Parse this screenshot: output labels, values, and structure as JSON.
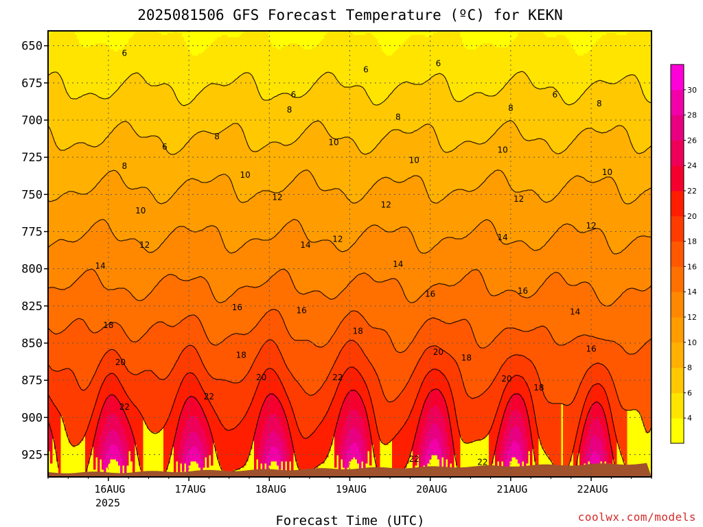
{
  "chart_data": {
    "type": "heatmap",
    "title": "2025081506 GFS Forecast Temperature (ºC) for KEKN",
    "xlabel": "Forecast Time (UTC)",
    "ylabel": "",
    "credit": "coolwx.com/models",
    "y_axis": {
      "reversed": true,
      "ylim": [
        640,
        940
      ],
      "ticks": [
        650,
        675,
        700,
        725,
        750,
        775,
        800,
        825,
        850,
        875,
        900,
        925
      ],
      "tick_labels": [
        "650",
        "675",
        "700",
        "725",
        "750",
        "775",
        "800",
        "825",
        "850",
        "875",
        "900",
        "925"
      ]
    },
    "x_axis": {
      "xlim": [
        -0.75,
        6.75
      ],
      "ticks": [
        0,
        1,
        2,
        3,
        4,
        5,
        6
      ],
      "tick_labels": [
        "16AUG",
        "17AUG",
        "18AUG",
        "19AUG",
        "20AUG",
        "21AUG",
        "22AUG"
      ],
      "year_label": "2025"
    },
    "grid": true,
    "colorbar": {
      "levels": [
        2,
        4,
        6,
        8,
        10,
        12,
        14,
        16,
        18,
        20,
        22,
        24,
        26,
        28,
        30,
        32
      ],
      "tick_labels": [
        "4",
        "6",
        "8",
        "10",
        "12",
        "14",
        "16",
        "18",
        "20",
        "22",
        "24",
        "26",
        "28",
        "30"
      ],
      "colors": [
        "#ffff00",
        "#ffe400",
        "#ffc800",
        "#ffb000",
        "#ff9c00",
        "#ff8800",
        "#ff7000",
        "#ff5800",
        "#ff3c00",
        "#ff1e00",
        "#f5002e",
        "#ee0058",
        "#e80080",
        "#f200a8",
        "#ff00d8"
      ]
    },
    "contour_labels": [
      {
        "value": "6",
        "x": 0.2,
        "y": 655
      },
      {
        "value": "6",
        "x": 2.3,
        "y": 683
      },
      {
        "value": "6",
        "x": 3.2,
        "y": 666
      },
      {
        "value": "6",
        "x": 4.1,
        "y": 662
      },
      {
        "value": "6",
        "x": 5.55,
        "y": 683
      },
      {
        "value": "6",
        "x": 0.7,
        "y": 718
      },
      {
        "value": "8",
        "x": 0.2,
        "y": 731
      },
      {
        "value": "8",
        "x": 1.35,
        "y": 711
      },
      {
        "value": "8",
        "x": 2.25,
        "y": 693
      },
      {
        "value": "8",
        "x": 3.6,
        "y": 698
      },
      {
        "value": "8",
        "x": 5.0,
        "y": 692
      },
      {
        "value": "8",
        "x": 6.1,
        "y": 689
      },
      {
        "value": "10",
        "x": 0.4,
        "y": 761
      },
      {
        "value": "10",
        "x": 1.7,
        "y": 737
      },
      {
        "value": "10",
        "x": 2.8,
        "y": 715
      },
      {
        "value": "10",
        "x": 3.8,
        "y": 727
      },
      {
        "value": "10",
        "x": 4.9,
        "y": 720
      },
      {
        "value": "10",
        "x": 6.2,
        "y": 735
      },
      {
        "value": "12",
        "x": 0.45,
        "y": 784
      },
      {
        "value": "12",
        "x": 2.1,
        "y": 752
      },
      {
        "value": "12",
        "x": 3.45,
        "y": 757
      },
      {
        "value": "12",
        "x": 2.85,
        "y": 780
      },
      {
        "value": "12",
        "x": 5.1,
        "y": 753
      },
      {
        "value": "12",
        "x": 6.0,
        "y": 771
      },
      {
        "value": "14",
        "x": -0.1,
        "y": 798
      },
      {
        "value": "14",
        "x": 2.45,
        "y": 784
      },
      {
        "value": "14",
        "x": 3.6,
        "y": 797
      },
      {
        "value": "14",
        "x": 4.9,
        "y": 779
      },
      {
        "value": "14",
        "x": 5.8,
        "y": 829
      },
      {
        "value": "16",
        "x": 1.6,
        "y": 826
      },
      {
        "value": "16",
        "x": 2.4,
        "y": 828
      },
      {
        "value": "16",
        "x": 4.0,
        "y": 817
      },
      {
        "value": "16",
        "x": 5.15,
        "y": 815
      },
      {
        "value": "16",
        "x": 6.0,
        "y": 854
      },
      {
        "value": "18",
        "x": 0.0,
        "y": 838
      },
      {
        "value": "18",
        "x": 1.65,
        "y": 858
      },
      {
        "value": "18",
        "x": 3.1,
        "y": 842
      },
      {
        "value": "18",
        "x": 4.45,
        "y": 860
      },
      {
        "value": "18",
        "x": 5.35,
        "y": 880
      },
      {
        "value": "20",
        "x": 0.15,
        "y": 863
      },
      {
        "value": "20",
        "x": 1.9,
        "y": 873
      },
      {
        "value": "20",
        "x": 4.1,
        "y": 856
      },
      {
        "value": "20",
        "x": 4.95,
        "y": 874
      },
      {
        "value": "22",
        "x": 0.2,
        "y": 893
      },
      {
        "value": "22",
        "x": 1.25,
        "y": 886
      },
      {
        "value": "22",
        "x": 2.85,
        "y": 873
      },
      {
        "value": "22",
        "x": 3.8,
        "y": 928
      },
      {
        "value": "22",
        "x": 4.65,
        "y": 930
      }
    ]
  }
}
